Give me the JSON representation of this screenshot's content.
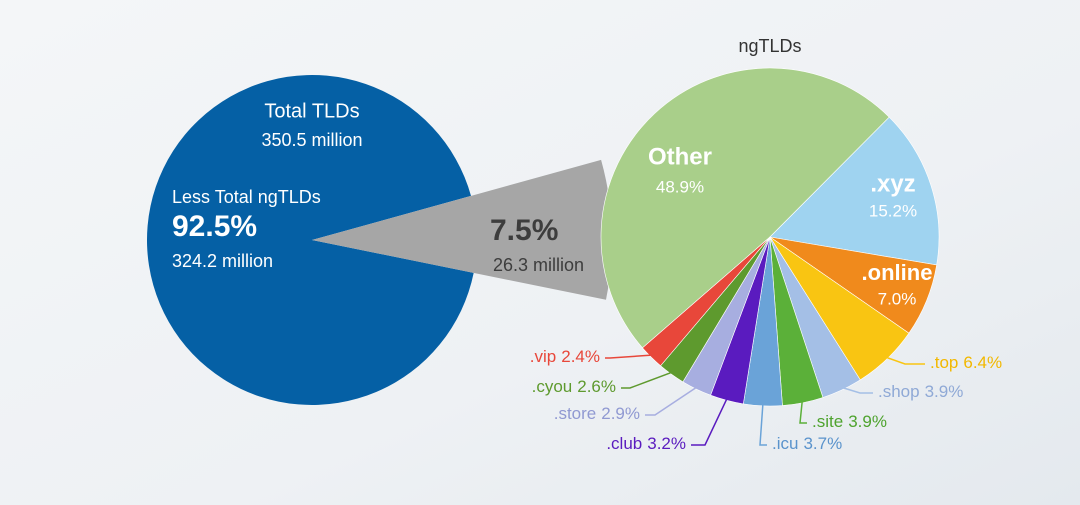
{
  "chart_data": [
    {
      "type": "pie",
      "title": "Total TLDs",
      "subtitle": "350.5 million",
      "categories": [
        "Less Total ngTLDs",
        null
      ],
      "values": [
        92.5,
        7.5
      ],
      "value_labels": [
        "92.5%",
        "7.5%"
      ],
      "amounts": [
        "324.2 million",
        "26.3 million"
      ],
      "colors": [
        "#0560a5",
        "#a6a6a6"
      ]
    },
    {
      "type": "pie",
      "title": "ngTLDs",
      "categories": [
        "Other",
        ".xyz",
        ".online",
        ".top",
        ".shop",
        ".site",
        ".icu",
        ".club",
        ".store",
        ".cyou",
        ".vip"
      ],
      "values": [
        48.9,
        15.2,
        7.0,
        6.4,
        3.9,
        3.9,
        3.7,
        3.2,
        2.9,
        2.6,
        2.4
      ],
      "value_labels": [
        "48.9%",
        "15.2%",
        "7.0%",
        "6.4%",
        "3.9%",
        "3.9%",
        "3.7%",
        "3.2%",
        "2.9%",
        "2.6%",
        "2.4%"
      ],
      "colors": [
        "#a9cf8a",
        "#9fd3f0",
        "#f08a1c",
        "#f9c512",
        "#a4bfe6",
        "#5bb039",
        "#6aa3d8",
        "#5a1bbf",
        "#a7aee0",
        "#5e9a2e",
        "#e8473a"
      ]
    }
  ]
}
